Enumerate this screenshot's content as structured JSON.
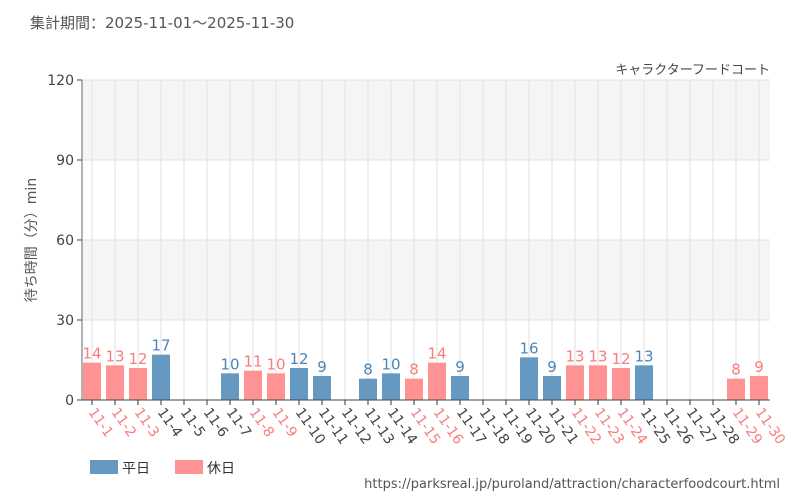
{
  "period_label": "集計期間：2025-11-01〜2025-11-30",
  "source_url": "https://parksreal.jp/puroland/attraction/characterfoodcourt.html",
  "chart_data": {
    "type": "bar",
    "title": "キャラクターフードコート",
    "ylabel": "待ち時間（分）min",
    "xlabel": "",
    "ylim": [
      0,
      120
    ],
    "yticks": [
      0,
      30,
      60,
      90,
      120
    ],
    "grid": true,
    "legend_position": "bottom-left",
    "colors": {
      "weekday": "#6699c2",
      "holiday": "#ff9393",
      "weekday_label": "#4d85b8",
      "holiday_label": "#f87d7d",
      "axis_text": "#444444"
    },
    "legend": [
      {
        "key": "weekday",
        "label": "平日"
      },
      {
        "key": "holiday",
        "label": "休日"
      }
    ],
    "categories": [
      "11-1",
      "11-2",
      "11-3",
      "11-4",
      "11-5",
      "11-6",
      "11-7",
      "11-8",
      "11-9",
      "11-10",
      "11-11",
      "11-12",
      "11-13",
      "11-14",
      "11-15",
      "11-16",
      "11-17",
      "11-18",
      "11-19",
      "11-20",
      "11-21",
      "11-22",
      "11-23",
      "11-24",
      "11-25",
      "11-26",
      "11-27",
      "11-28",
      "11-29",
      "11-30"
    ],
    "day_type": [
      "holiday",
      "holiday",
      "holiday",
      "weekday",
      "weekday",
      "weekday",
      "weekday",
      "holiday",
      "holiday",
      "weekday",
      "weekday",
      "weekday",
      "weekday",
      "weekday",
      "holiday",
      "holiday",
      "weekday",
      "weekday",
      "weekday",
      "weekday",
      "weekday",
      "holiday",
      "holiday",
      "holiday",
      "weekday",
      "weekday",
      "weekday",
      "weekday",
      "holiday",
      "holiday"
    ],
    "values": [
      14,
      13,
      12,
      17,
      null,
      null,
      10,
      11,
      10,
      12,
      9,
      null,
      8,
      10,
      8,
      14,
      9,
      null,
      null,
      16,
      9,
      13,
      13,
      12,
      13,
      null,
      null,
      null,
      8,
      9
    ]
  }
}
